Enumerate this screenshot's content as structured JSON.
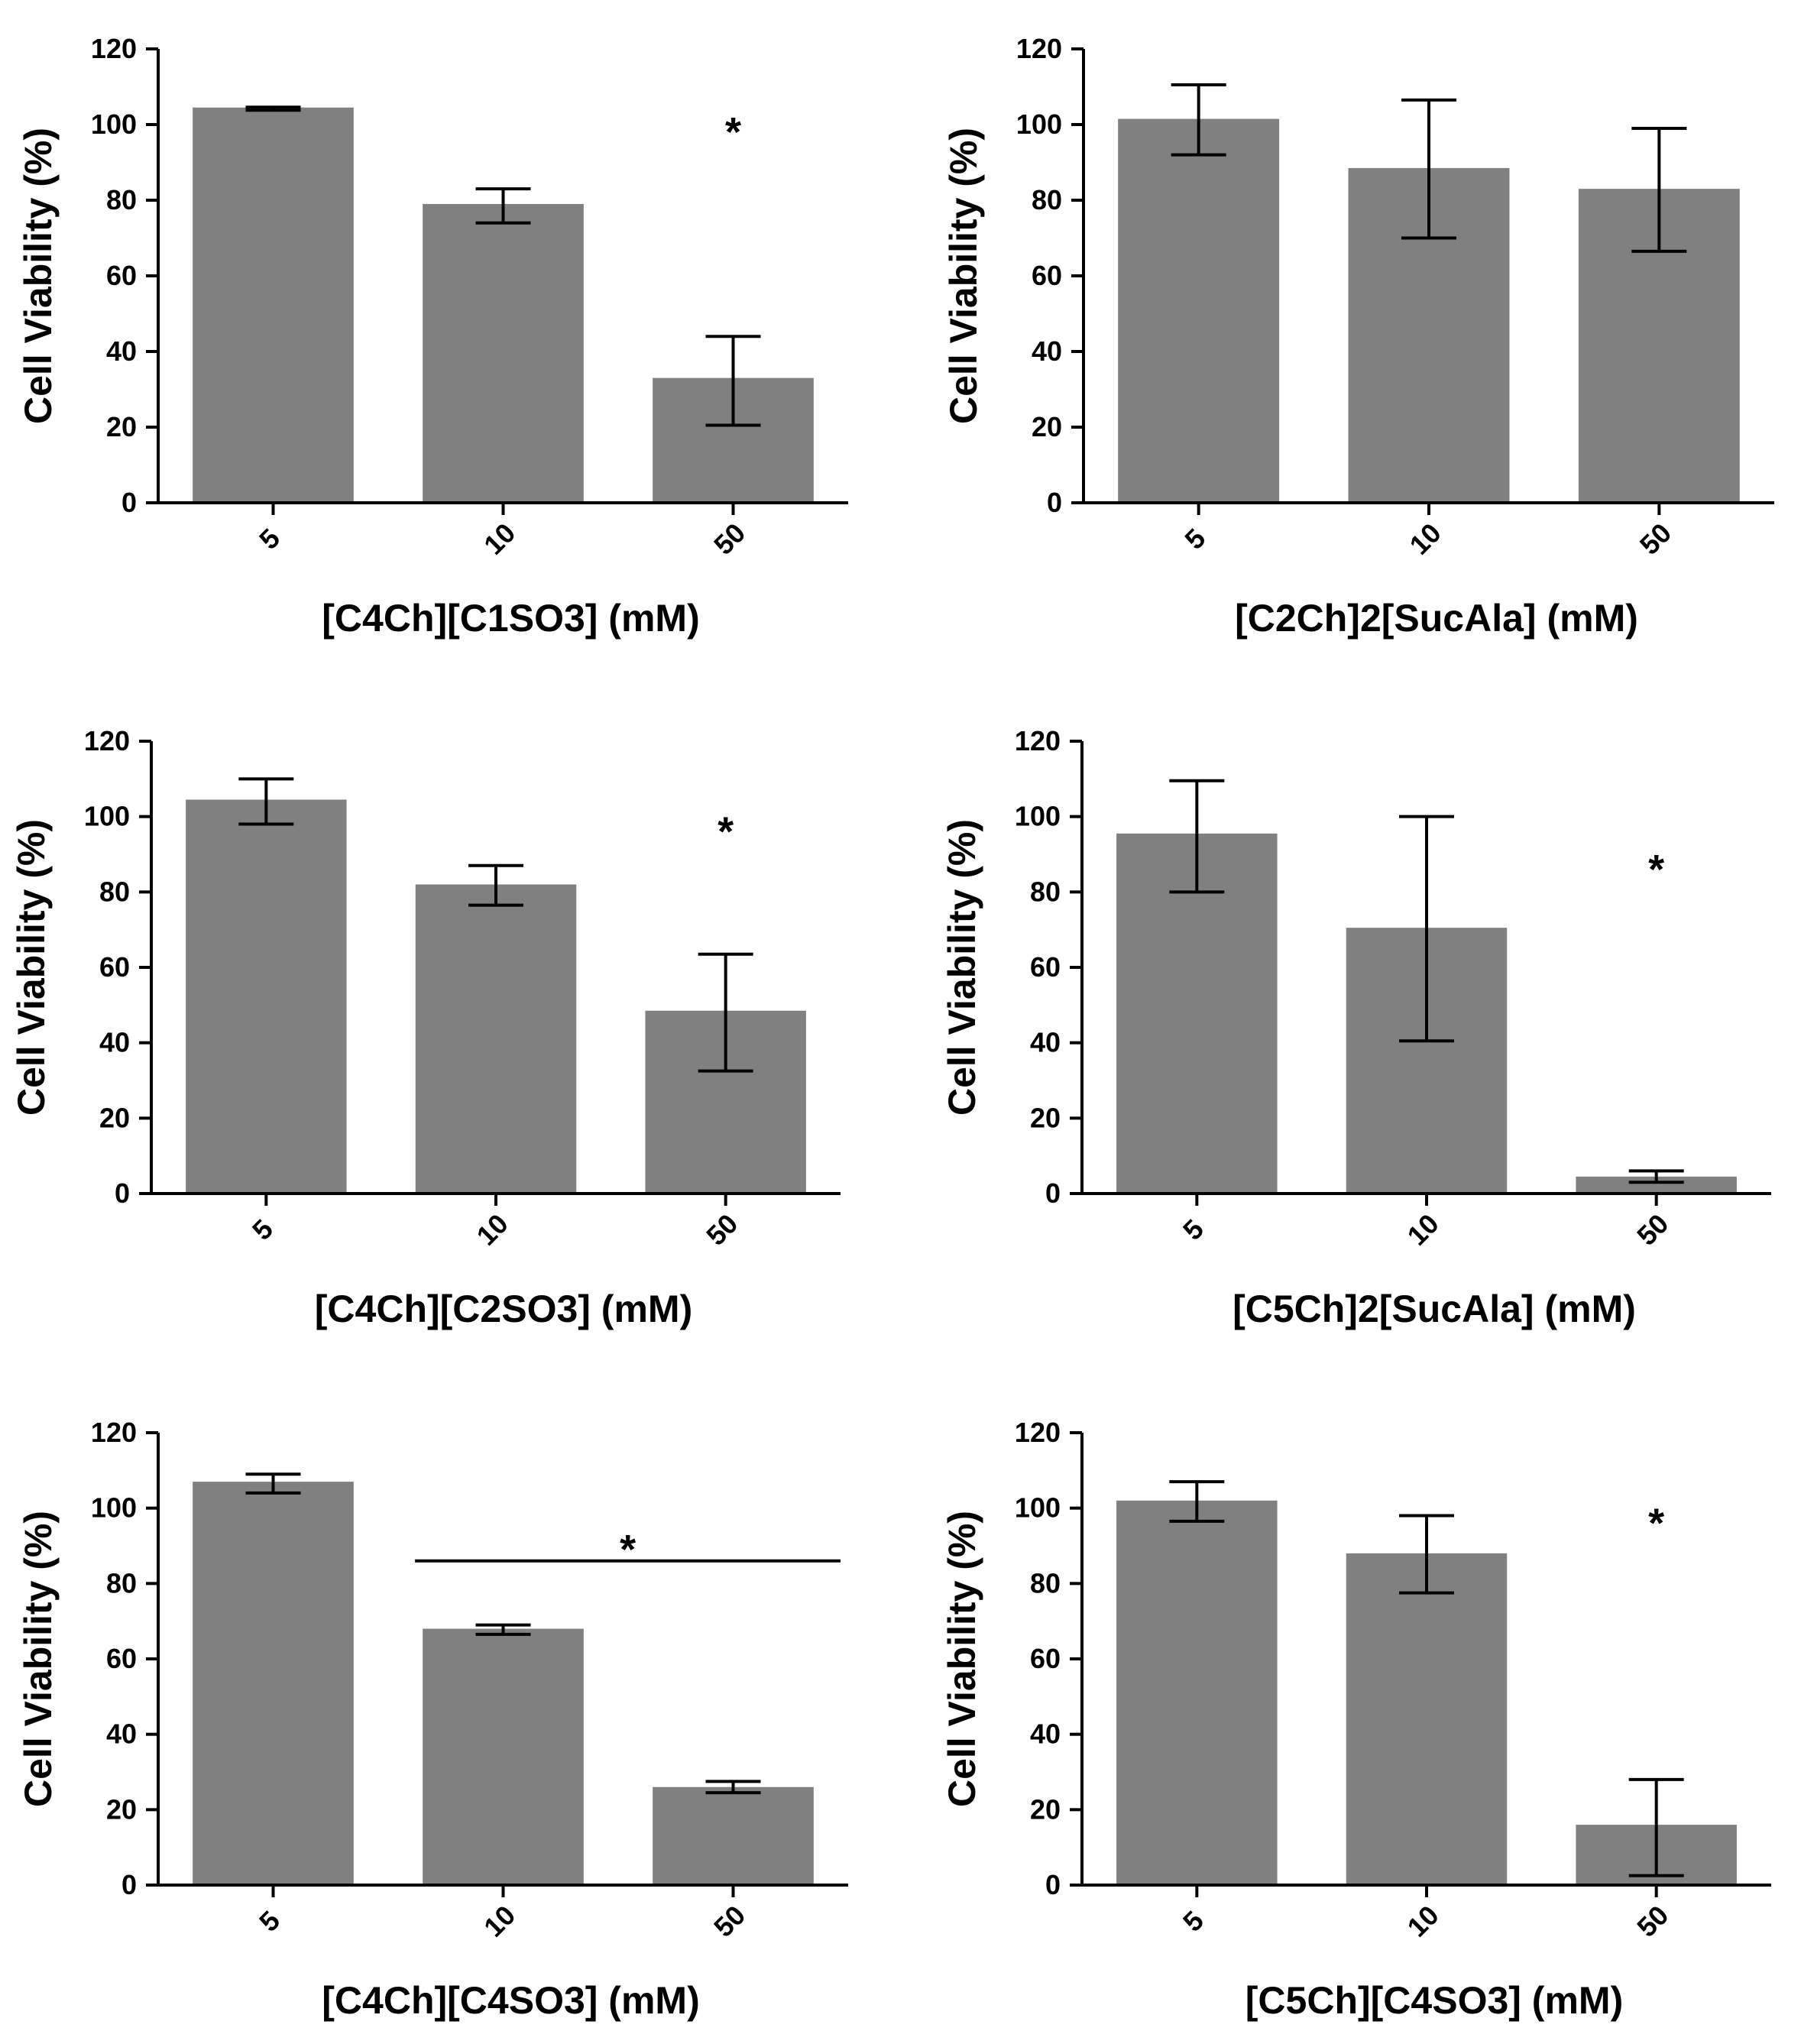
{
  "chart_data": [
    {
      "type": "bar",
      "xlabel": "[C4Ch][C1SO3] (mM)",
      "ylabel": "Cell Viability (%)",
      "categories": [
        "5",
        "10",
        "50"
      ],
      "values": [
        104.5,
        79,
        33
      ],
      "errors": [
        [
          103.8,
          104.6
        ],
        [
          74,
          83
        ],
        [
          20.5,
          44
        ]
      ],
      "ylim": [
        0,
        120
      ],
      "yticks": [
        "0",
        "20",
        "40",
        "60",
        "80",
        "100",
        "120"
      ],
      "annotations": [
        {
          "text": "*",
          "category": "50",
          "y": 100
        }
      ]
    },
    {
      "type": "bar",
      "xlabel": "[C2Ch]2[SucAla] (mM)",
      "ylabel": "Cell Viability (%)",
      "categories": [
        "5",
        "10",
        "50"
      ],
      "values": [
        101.5,
        88.5,
        83
      ],
      "errors": [
        [
          92,
          110.5
        ],
        [
          70,
          106.5
        ],
        [
          66.5,
          99
        ]
      ],
      "ylim": [
        0,
        120
      ],
      "yticks": [
        "0",
        "20",
        "40",
        "60",
        "80",
        "100",
        "120"
      ],
      "annotations": []
    },
    {
      "type": "bar",
      "xlabel": "[C4Ch][C2SO3] (mM)",
      "ylabel": "Cell Viability (%)",
      "categories": [
        "5",
        "10",
        "50"
      ],
      "values": [
        104.5,
        82,
        48.5
      ],
      "errors": [
        [
          98,
          110
        ],
        [
          76.5,
          87
        ],
        [
          32.5,
          63.5
        ]
      ],
      "ylim": [
        0,
        120
      ],
      "yticks": [
        "0",
        "20",
        "40",
        "60",
        "80",
        "100",
        "120"
      ],
      "annotations": [
        {
          "text": "*",
          "category": "50",
          "y": 98
        }
      ]
    },
    {
      "type": "bar",
      "xlabel": "[C5Ch]2[SucAla] (mM)",
      "ylabel": "Cell Viability (%)",
      "categories": [
        "5",
        "10",
        "50"
      ],
      "values": [
        95.5,
        70.5,
        4.5
      ],
      "errors": [
        [
          80,
          109.5
        ],
        [
          40.5,
          100
        ],
        [
          3,
          6
        ]
      ],
      "ylim": [
        0,
        120
      ],
      "yticks": [
        "0",
        "20",
        "40",
        "60",
        "80",
        "100",
        "120"
      ],
      "annotations": [
        {
          "text": "*",
          "category": "50",
          "y": 88
        }
      ]
    },
    {
      "type": "bar",
      "xlabel": "[C4Ch][C4SO3] (mM)",
      "ylabel": "Cell Viability (%)",
      "categories": [
        "5",
        "10",
        "50"
      ],
      "values": [
        107,
        68,
        26
      ],
      "errors": [
        [
          104,
          109
        ],
        [
          66.5,
          69
        ],
        [
          24.5,
          27.5
        ]
      ],
      "ylim": [
        0,
        120
      ],
      "yticks": [
        "0",
        "20",
        "40",
        "60",
        "80",
        "100",
        "120"
      ],
      "annotations": [
        {
          "text": "*",
          "category": "10-50",
          "y": 91,
          "bracket_y": 86
        }
      ]
    },
    {
      "type": "bar",
      "xlabel": "[C5Ch][C4SO3] (mM)",
      "ylabel": "Cell Viability (%)",
      "categories": [
        "5",
        "10",
        "50"
      ],
      "values": [
        102,
        88,
        16
      ],
      "errors": [
        [
          96.5,
          107
        ],
        [
          77.5,
          98
        ],
        [
          2.5,
          28
        ]
      ],
      "ylim": [
        0,
        120
      ],
      "yticks": [
        "0",
        "20",
        "40",
        "60",
        "80",
        "100",
        "120"
      ],
      "annotations": [
        {
          "text": "*",
          "category": "50",
          "y": 98
        }
      ]
    }
  ]
}
